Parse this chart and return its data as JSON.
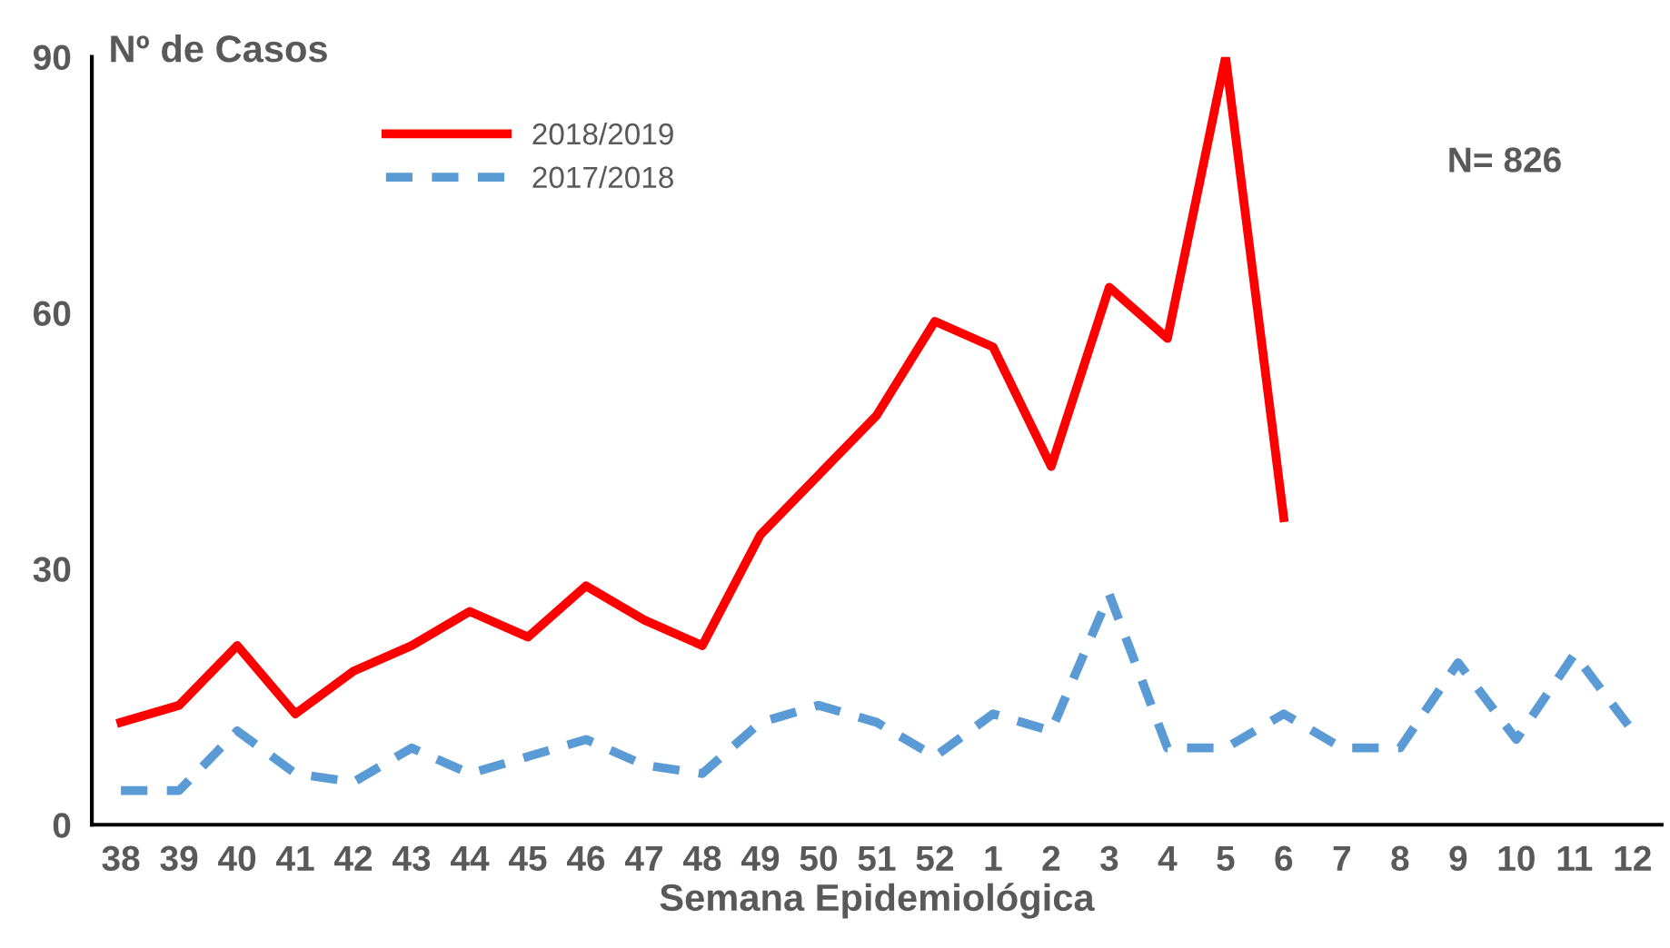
{
  "chart_data": {
    "type": "line",
    "ylabel": "Nº de Casos",
    "xlabel": "Semana Epidemiológica",
    "categories": [
      "38",
      "39",
      "40",
      "41",
      "42",
      "43",
      "44",
      "45",
      "46",
      "47",
      "48",
      "49",
      "50",
      "51",
      "52",
      "1",
      "2",
      "3",
      "4",
      "5",
      "6",
      "7",
      "8",
      "9",
      "10",
      "11",
      "12"
    ],
    "series": [
      {
        "name": "2018/2019",
        "color": "#ff0000",
        "line_style": "solid",
        "values": [
          12,
          14,
          21,
          13,
          18,
          21,
          25,
          22,
          28,
          24,
          21,
          34,
          41,
          48,
          59,
          56,
          42,
          63,
          57,
          90,
          36,
          null,
          null,
          null,
          null,
          null,
          null
        ]
      },
      {
        "name": "2017/2018",
        "color": "#5b9bd5",
        "line_style": "dashed",
        "values": [
          4,
          4,
          11,
          6,
          5,
          9,
          6,
          8,
          10,
          7,
          6,
          12,
          14,
          12,
          8,
          13,
          11,
          27,
          9,
          9,
          13,
          9,
          9,
          19,
          10,
          20,
          11
        ]
      }
    ],
    "ylim": [
      0,
      90
    ],
    "yticks": [
      0,
      30,
      60,
      90
    ],
    "grid": false,
    "legend": "top left",
    "marker": "none",
    "annotations": [
      "N= 826"
    ]
  }
}
